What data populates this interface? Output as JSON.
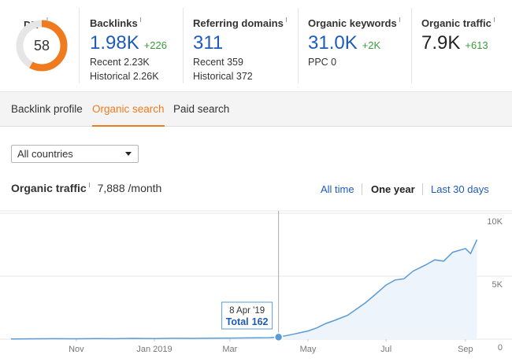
{
  "metrics": {
    "dr": {
      "label": "DR",
      "value": 58,
      "max": 100
    },
    "items": [
      {
        "label": "Backlinks",
        "value": "1.98K",
        "change": "+226",
        "color": "#1e5bb8",
        "lines": [
          "Recent 2.23K",
          "Historical 2.26K"
        ]
      },
      {
        "label": "Referring domains",
        "value": "311",
        "color": "#1e5bb8",
        "lines": [
          "Recent 359",
          "Historical 372"
        ]
      },
      {
        "label": "Organic keywords",
        "value": "31.0K",
        "change": "+2K",
        "color": "#1e5bb8",
        "lines": [
          "PPC 0"
        ]
      },
      {
        "label": "Organic traffic",
        "value": "7.9K",
        "change": "+613",
        "color": "#222222",
        "lines": []
      }
    ]
  },
  "tabs": [
    "Backlink profile",
    "Organic search",
    "Paid search"
  ],
  "active_tab": 1,
  "country_select": "All countries",
  "chart_header": {
    "title": "Organic traffic",
    "value": "7,888",
    "unit": "/month"
  },
  "ranges": [
    "All time",
    "One year",
    "Last 30 days"
  ],
  "active_range": 1,
  "chart_data": {
    "type": "area",
    "color": "#5b9bd5",
    "fill": "#edf4fc",
    "x": [
      "2018-09-11",
      "2018-10-01",
      "2018-10-15",
      "2018-11-01",
      "2018-11-15",
      "2018-12-01",
      "2018-12-15",
      "2019-01-01",
      "2019-01-15",
      "2019-02-01",
      "2019-02-15",
      "2019-03-01",
      "2019-03-15",
      "2019-04-01",
      "2019-04-08",
      "2019-04-15",
      "2019-04-22",
      "2019-05-01",
      "2019-05-08",
      "2019-05-15",
      "2019-05-22",
      "2019-06-01",
      "2019-06-08",
      "2019-06-15",
      "2019-06-22",
      "2019-07-01",
      "2019-07-08",
      "2019-07-15",
      "2019-07-22",
      "2019-08-01",
      "2019-08-08",
      "2019-08-15",
      "2019-08-22",
      "2019-09-01",
      "2019-09-05",
      "2019-09-10"
    ],
    "values": [
      20,
      30,
      40,
      30,
      50,
      40,
      60,
      50,
      70,
      60,
      80,
      90,
      100,
      120,
      162,
      300,
      450,
      650,
      900,
      1250,
      1500,
      1900,
      2400,
      2900,
      3500,
      4300,
      4700,
      4800,
      5400,
      5900,
      6300,
      6200,
      6900,
      7200,
      6800,
      7900
    ],
    "xlim": [
      "2018-09-11",
      "2019-09-14"
    ],
    "xticks": [
      {
        "value": "2018-11-01",
        "label": "Nov"
      },
      {
        "value": "2019-01-01",
        "label": "Jan 2019"
      },
      {
        "value": "2019-03-01",
        "label": "Mar"
      },
      {
        "value": "2019-05-01",
        "label": "May"
      },
      {
        "value": "2019-07-01",
        "label": "Jul"
      },
      {
        "value": "2019-09-01",
        "label": "Sep"
      }
    ],
    "ylim": [
      0,
      10000
    ],
    "yticks": [
      0,
      {
        "value": 5000,
        "label": "5K"
      },
      {
        "value": 10000,
        "label": "10K"
      }
    ],
    "grid": true,
    "tooltip": {
      "x": "2019-04-08",
      "date": "8 Apr '19",
      "label": "Total",
      "value": 162
    }
  }
}
